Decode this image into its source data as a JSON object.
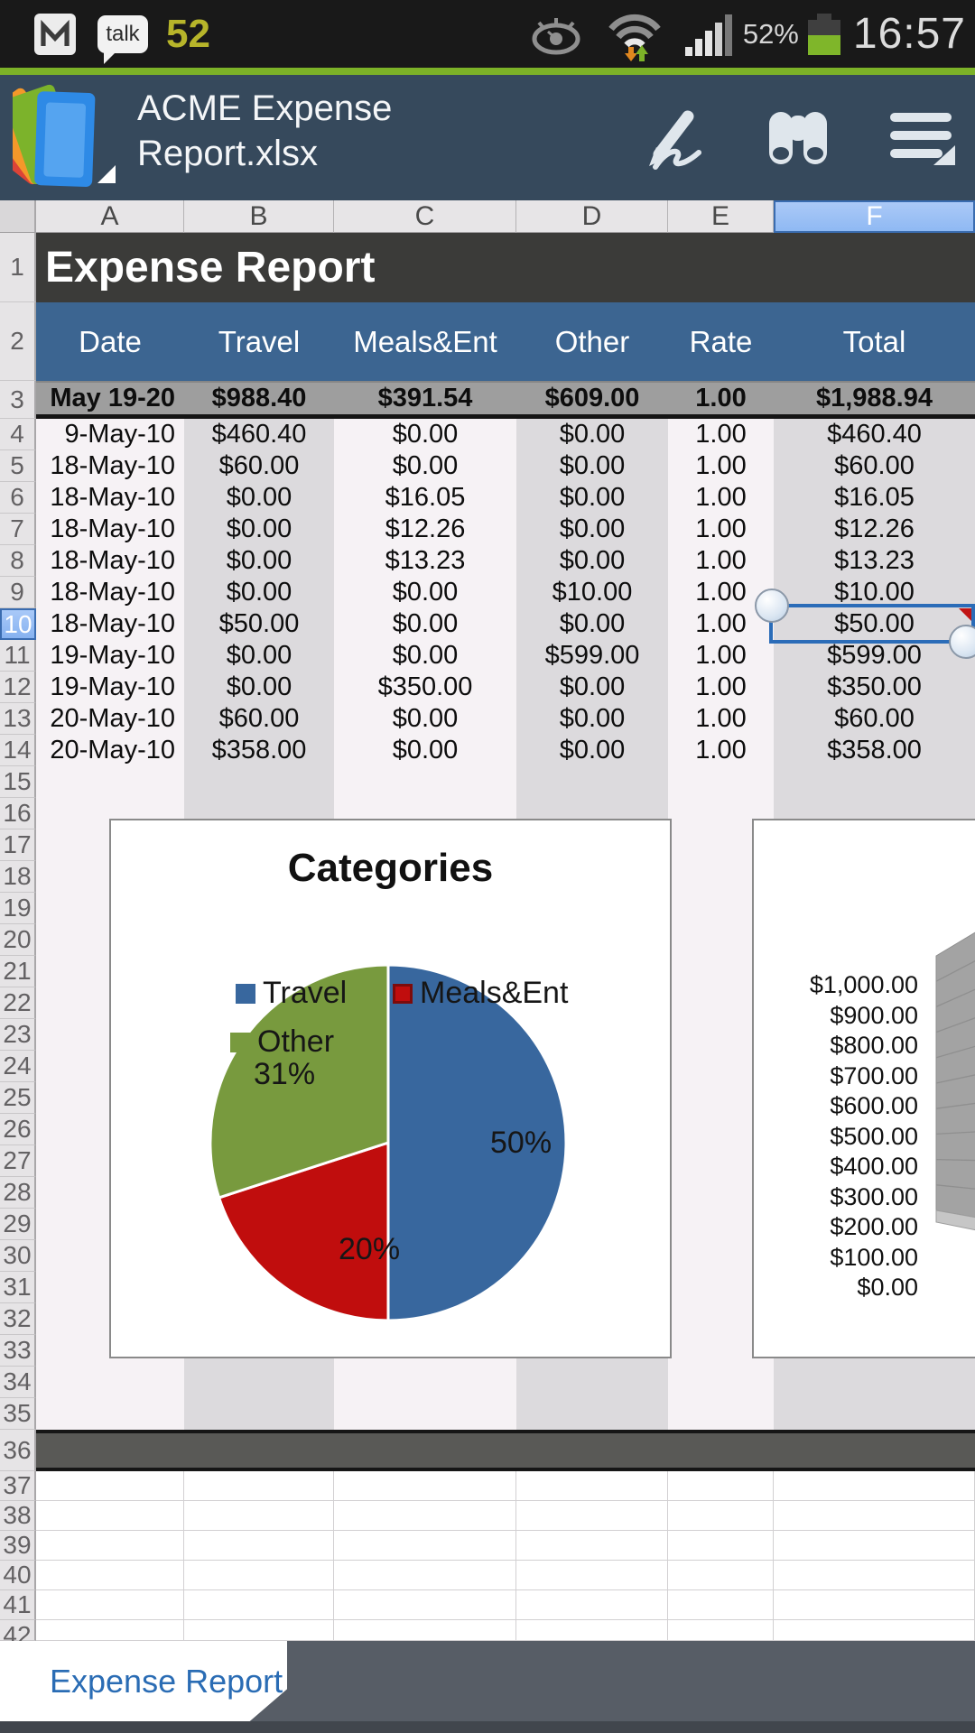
{
  "status_bar": {
    "notification_count": "52",
    "talk_label": "talk",
    "battery_percent": "52%",
    "time": "16:57",
    "icons": [
      "gmail-icon",
      "talk-icon",
      "smart-stay-eye-icon",
      "wifi-icon",
      "signal-strength-icon",
      "battery-icon"
    ]
  },
  "app_header": {
    "title": "ACME Expense Report.xlsx",
    "actions": [
      "handwrite-pen",
      "find",
      "menu"
    ]
  },
  "grid": {
    "columns": [
      "A",
      "B",
      "C",
      "D",
      "E",
      "F"
    ],
    "selected_column": "F",
    "selected_row": 10,
    "selected_cell": "F10",
    "comment_marker_cell": "F10",
    "title_row": {
      "number": 1,
      "text": "Expense Report"
    },
    "header_row": {
      "number": 2,
      "cells": [
        "Date",
        "Travel",
        "Meals&Ent",
        "Other",
        "Rate",
        "Total"
      ]
    },
    "summary_row": {
      "number": 3,
      "cells": [
        "May 19-20",
        "$988.40",
        "$391.54",
        "$609.00",
        "1.00",
        "$1,988.94"
      ]
    },
    "data_rows": [
      {
        "number": 4,
        "cells": [
          "9-May-10",
          "$460.40",
          "$0.00",
          "$0.00",
          "1.00",
          "$460.40"
        ]
      },
      {
        "number": 5,
        "cells": [
          "18-May-10",
          "$60.00",
          "$0.00",
          "$0.00",
          "1.00",
          "$60.00"
        ]
      },
      {
        "number": 6,
        "cells": [
          "18-May-10",
          "$0.00",
          "$16.05",
          "$0.00",
          "1.00",
          "$16.05"
        ]
      },
      {
        "number": 7,
        "cells": [
          "18-May-10",
          "$0.00",
          "$12.26",
          "$0.00",
          "1.00",
          "$12.26"
        ]
      },
      {
        "number": 8,
        "cells": [
          "18-May-10",
          "$0.00",
          "$13.23",
          "$0.00",
          "1.00",
          "$13.23"
        ]
      },
      {
        "number": 9,
        "cells": [
          "18-May-10",
          "$0.00",
          "$0.00",
          "$10.00",
          "1.00",
          "$10.00"
        ]
      },
      {
        "number": 10,
        "cells": [
          "18-May-10",
          "$50.00",
          "$0.00",
          "$0.00",
          "1.00",
          "$50.00"
        ]
      },
      {
        "number": 11,
        "cells": [
          "19-May-10",
          "$0.00",
          "$0.00",
          "$599.00",
          "1.00",
          "$599.00"
        ]
      },
      {
        "number": 12,
        "cells": [
          "19-May-10",
          "$0.00",
          "$350.00",
          "$0.00",
          "1.00",
          "$350.00"
        ]
      },
      {
        "number": 13,
        "cells": [
          "20-May-10",
          "$60.00",
          "$0.00",
          "$0.00",
          "1.00",
          "$60.00"
        ]
      },
      {
        "number": 14,
        "cells": [
          "20-May-10",
          "$358.00",
          "$0.00",
          "$0.00",
          "1.00",
          "$358.00"
        ]
      }
    ],
    "empty_rows_banded": {
      "from": 15,
      "to": 35
    },
    "dark_row": {
      "number": 36
    },
    "empty_rows_grid": {
      "from": 37,
      "to": 41
    },
    "partial_row": {
      "number": 42
    }
  },
  "chart_data": [
    {
      "type": "pie",
      "title": "Categories",
      "labels": [
        "Travel",
        "Meals&Ent",
        "Other"
      ],
      "values": [
        50,
        20,
        31
      ],
      "unit": "percent",
      "pct_labels": [
        "50%",
        "20%",
        "31%"
      ],
      "colors": {
        "Travel": "#38679E",
        "Meals&Ent": "#C00D0D",
        "Other": "#789A3E"
      },
      "legend_position": "overlay"
    },
    {
      "type": "bar",
      "title": "",
      "yticks": [
        "$1,000.00",
        "$900.00",
        "$800.00",
        "$700.00",
        "$600.00",
        "$500.00",
        "$400.00",
        "$300.00",
        "$200.00",
        "$100.00",
        "$0.00"
      ],
      "ylim": [
        0,
        1000
      ],
      "style": "3d",
      "visible": "y-axis and 3D back wall only; plot area cropped at screen edge"
    }
  ],
  "sheet_tab": {
    "label": "Expense Report"
  }
}
